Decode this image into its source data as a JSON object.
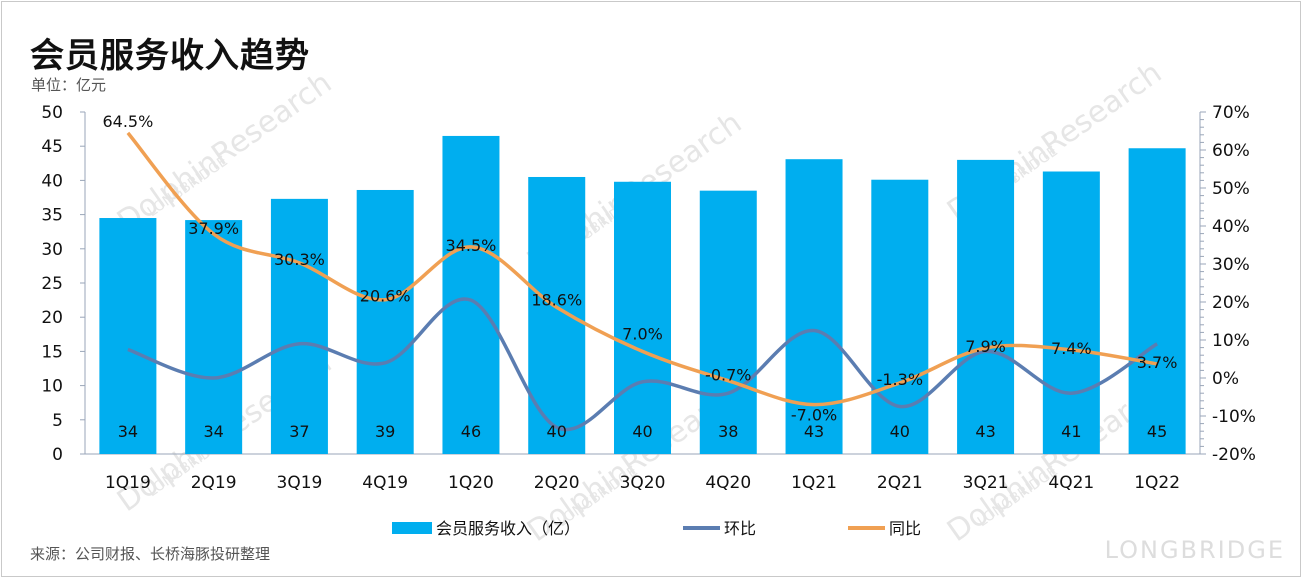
{
  "title": "会员服务收入趋势",
  "unit_label": "单位：亿元",
  "source_note": "来源：公司财报、长桥海豚投研整理",
  "watermarks": [
    "LONGBRIDGE",
    "DolphinResearch"
  ],
  "colors": {
    "bar": "#00AEEF",
    "qoq_line": "#5B7DB1",
    "yoy_line": "#F0A053",
    "axis": "#9aa6b8",
    "watermark": "#e6e6e6"
  },
  "chart_data": {
    "type": "bar",
    "title": "会员服务收入趋势",
    "categories": [
      "1Q19",
      "2Q19",
      "3Q19",
      "4Q19",
      "1Q20",
      "2Q20",
      "3Q20",
      "4Q20",
      "1Q21",
      "2Q21",
      "3Q21",
      "4Q21",
      "1Q22"
    ],
    "series": [
      {
        "name": "会员服务收入（亿）",
        "type": "bar",
        "axis": "left",
        "values": [
          34.5,
          34.2,
          37.3,
          38.6,
          46.5,
          40.5,
          39.8,
          38.5,
          43.1,
          40.1,
          43.0,
          41.3,
          44.7
        ],
        "labels": [
          "34",
          "34",
          "37",
          "39",
          "46",
          "40",
          "40",
          "38",
          "43",
          "40",
          "43",
          "41",
          "45"
        ]
      },
      {
        "name": "环比",
        "type": "line",
        "axis": "right",
        "values": [
          7.5,
          0,
          9,
          4,
          20.5,
          -13,
          -1,
          -4,
          12.5,
          -7.5,
          7,
          -4,
          9
        ]
      },
      {
        "name": "同比",
        "type": "line",
        "axis": "right",
        "values": [
          64.5,
          37.9,
          30.3,
          20.6,
          34.5,
          18.6,
          7.0,
          -0.7,
          -7.0,
          -1.3,
          7.9,
          7.4,
          3.7
        ],
        "labels": [
          "64.5%",
          "37.9%",
          "30.3%",
          "20.6%",
          "34.5%",
          "18.6%",
          "7.0%",
          "-0.7%",
          "-7.0%",
          "-1.3%",
          "7.9%",
          "7.4%",
          "3.7%"
        ]
      }
    ],
    "y_left": {
      "min": 0,
      "max": 50,
      "ticks": [
        0,
        5,
        10,
        15,
        20,
        25,
        30,
        35,
        40,
        45,
        50
      ]
    },
    "y_right": {
      "min": -20,
      "max": 70,
      "ticks": [
        "-20%",
        "-10%",
        "0%",
        "10%",
        "20%",
        "30%",
        "40%",
        "50%",
        "60%",
        "70%"
      ]
    },
    "grid": false,
    "legend_position": "bottom-center"
  }
}
